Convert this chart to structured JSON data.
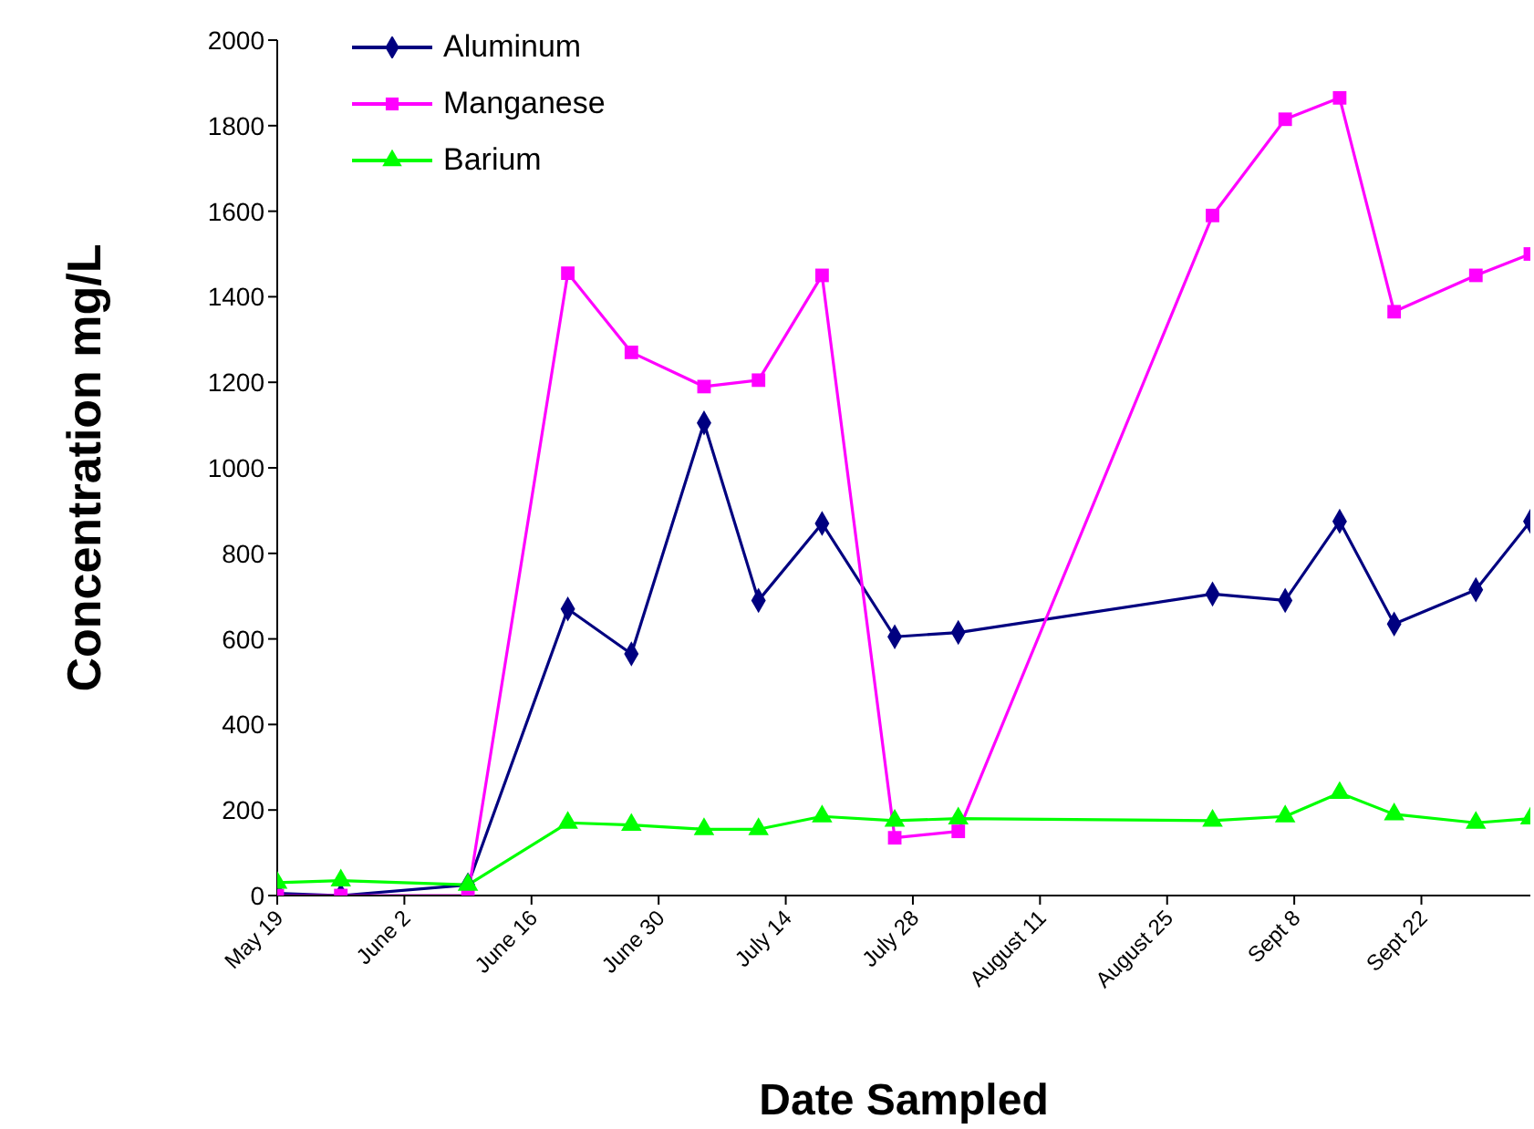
{
  "chart_data": {
    "type": "line",
    "xlabel": "Date Sampled",
    "ylabel": "Concentration mg/L",
    "x": [
      "--05-19",
      "--05-26",
      "--06-09",
      "--06-20",
      "--06-27",
      "--07-05",
      "--07-11",
      "--07-18",
      "--07-26",
      "--08-02",
      "--08-30",
      "--09-07",
      "--09-13",
      "--09-19",
      "--09-28",
      "--10-04"
    ],
    "series": [
      {
        "name": "Aluminum",
        "color": "#000080",
        "marker": "diamond",
        "values": [
          5,
          0,
          25,
          670,
          565,
          1105,
          690,
          870,
          605,
          615,
          705,
          690,
          875,
          635,
          715,
          875
        ]
      },
      {
        "name": "Manganese",
        "color": "#ff00ff",
        "marker": "square",
        "values": [
          0,
          0,
          0,
          1455,
          1270,
          1190,
          1205,
          1450,
          135,
          150,
          1590,
          1815,
          1865,
          1365,
          1450,
          1500
        ]
      },
      {
        "name": "Barium",
        "color": "#00ff00",
        "marker": "triangle",
        "values": [
          30,
          35,
          25,
          170,
          165,
          155,
          155,
          185,
          175,
          180,
          175,
          185,
          240,
          190,
          170,
          180
        ]
      }
    ],
    "xlim": [
      "--05-19",
      "--10-04"
    ],
    "xticks": [
      {
        "value": "--05-19",
        "label": "May 19"
      },
      {
        "value": "--06-02",
        "label": "June 2"
      },
      {
        "value": "--06-16",
        "label": "June 16"
      },
      {
        "value": "--06-30",
        "label": "June 30"
      },
      {
        "value": "--07-14",
        "label": "July 14"
      },
      {
        "value": "--07-28",
        "label": "July 28"
      },
      {
        "value": "--08-11",
        "label": "August 11"
      },
      {
        "value": "--08-25",
        "label": "August 25"
      },
      {
        "value": "--09-08",
        "label": "Sept 8"
      },
      {
        "value": "--09-22",
        "label": "Sept 22"
      }
    ],
    "ylim": [
      0,
      2000
    ],
    "yticks": [
      0,
      200,
      400,
      600,
      800,
      1000,
      1200,
      1400,
      1600,
      1800,
      2000
    ],
    "grid": false,
    "legend": "top left",
    "line_style": "solid"
  }
}
